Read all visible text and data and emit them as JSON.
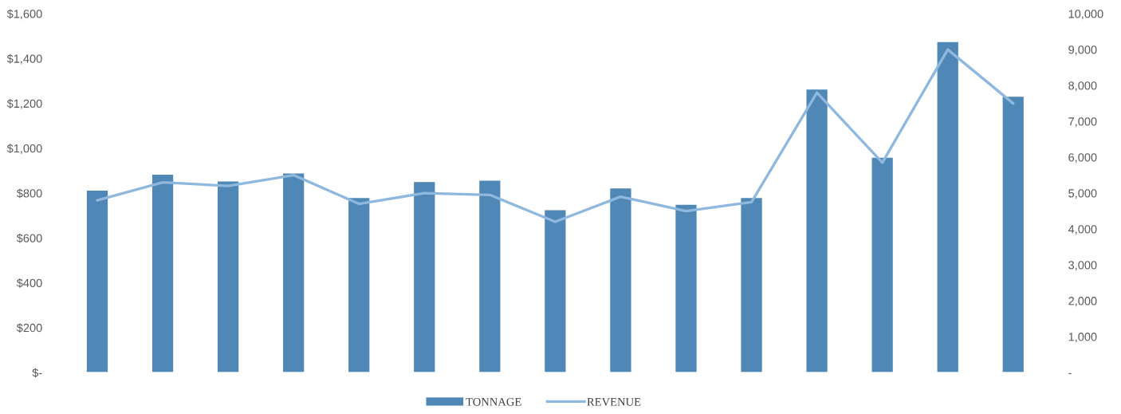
{
  "chart_data": {
    "type": "bar",
    "categories": [
      null,
      null,
      null,
      null,
      null,
      null,
      null,
      null,
      null,
      null,
      null,
      null,
      null,
      null,
      null
    ],
    "series": [
      {
        "name": "TONNAGE",
        "color": "#4f87b6",
        "values": [
          811,
          882,
          852,
          887,
          778,
          849,
          855,
          724,
          821,
          748,
          778,
          1262,
          958,
          1473,
          1230
        ]
      },
      {
        "name": "REVENUE",
        "type": "line",
        "axis": "y2",
        "color": "#8fb8df",
        "values": [
          4800,
          5300,
          5200,
          5500,
          4700,
          5000,
          4950,
          4200,
          4900,
          4500,
          4750,
          7800,
          5850,
          9000,
          7500
        ]
      }
    ],
    "ylim": [
      0,
      1600
    ],
    "yticks": [
      {
        "value": 0,
        "label": "$-"
      },
      {
        "value": 200,
        "label": "$200"
      },
      {
        "value": 400,
        "label": "$400"
      },
      {
        "value": 600,
        "label": "$600"
      },
      {
        "value": 800,
        "label": "$800"
      },
      {
        "value": 1000,
        "label": "$1,000"
      },
      {
        "value": 1200,
        "label": "$1,200"
      },
      {
        "value": 1400,
        "label": "$1,400"
      },
      {
        "value": 1600,
        "label": "$1,600"
      }
    ],
    "y2lim": [
      0,
      10000
    ],
    "y2ticks": [
      {
        "value": 0,
        "label": "-"
      },
      {
        "value": 1000,
        "label": "1,000"
      },
      {
        "value": 2000,
        "label": "2,000"
      },
      {
        "value": 3000,
        "label": "3,000"
      },
      {
        "value": 4000,
        "label": "4,000"
      },
      {
        "value": 5000,
        "label": "5,000"
      },
      {
        "value": 6000,
        "label": "6,000"
      },
      {
        "value": 7000,
        "label": "7,000"
      },
      {
        "value": 8000,
        "label": "8,000"
      },
      {
        "value": 9000,
        "label": "9,000"
      },
      {
        "value": 10000,
        "label": "10,000"
      }
    ],
    "legend": "bottom",
    "line_style": "solid"
  }
}
